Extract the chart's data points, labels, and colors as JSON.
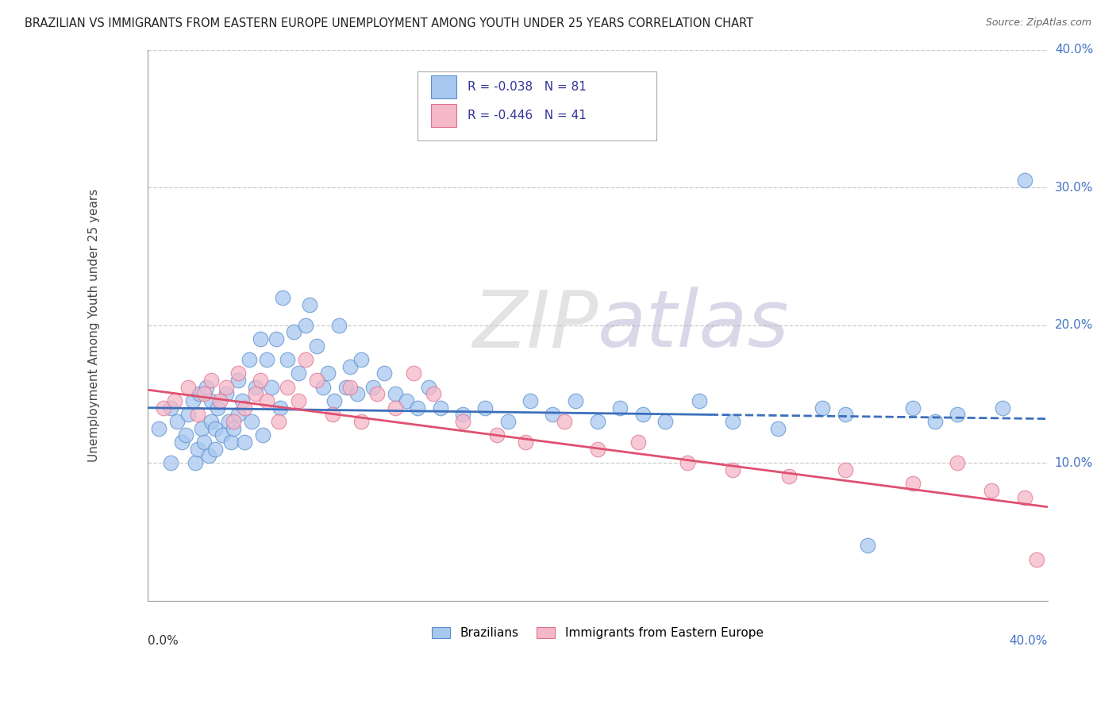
{
  "title": "BRAZILIAN VS IMMIGRANTS FROM EASTERN EUROPE UNEMPLOYMENT AMONG YOUTH UNDER 25 YEARS CORRELATION CHART",
  "source": "Source: ZipAtlas.com",
  "ylabel": "Unemployment Among Youth under 25 years",
  "xlim": [
    0.0,
    0.4
  ],
  "ylim": [
    0.0,
    0.4
  ],
  "blue_fill": "#A8C8F0",
  "blue_edge": "#5B8FCC",
  "pink_fill": "#F5B8C8",
  "pink_edge": "#E07090",
  "blue_line_color": "#3B6FBB",
  "pink_line_color": "#E05070",
  "watermark_color": "#DEDEDE",
  "legend_R_blue": "R = -0.038",
  "legend_N_blue": "N = 81",
  "legend_R_pink": "R = -0.446",
  "legend_N_pink": "N = 41",
  "blue_x": [
    0.005,
    0.01,
    0.01,
    0.013,
    0.015,
    0.017,
    0.018,
    0.02,
    0.021,
    0.022,
    0.023,
    0.024,
    0.025,
    0.026,
    0.027,
    0.028,
    0.028,
    0.03,
    0.03,
    0.031,
    0.033,
    0.035,
    0.036,
    0.037,
    0.038,
    0.04,
    0.04,
    0.042,
    0.043,
    0.045,
    0.046,
    0.048,
    0.05,
    0.051,
    0.053,
    0.055,
    0.057,
    0.059,
    0.06,
    0.062,
    0.065,
    0.067,
    0.07,
    0.072,
    0.075,
    0.078,
    0.08,
    0.083,
    0.085,
    0.088,
    0.09,
    0.093,
    0.095,
    0.1,
    0.105,
    0.11,
    0.115,
    0.12,
    0.125,
    0.13,
    0.14,
    0.15,
    0.16,
    0.17,
    0.18,
    0.19,
    0.2,
    0.21,
    0.22,
    0.23,
    0.245,
    0.26,
    0.28,
    0.3,
    0.31,
    0.32,
    0.34,
    0.35,
    0.36,
    0.38,
    0.39
  ],
  "blue_y": [
    0.125,
    0.14,
    0.1,
    0.13,
    0.115,
    0.12,
    0.135,
    0.145,
    0.1,
    0.11,
    0.15,
    0.125,
    0.115,
    0.155,
    0.105,
    0.13,
    0.145,
    0.11,
    0.125,
    0.14,
    0.12,
    0.15,
    0.13,
    0.115,
    0.125,
    0.16,
    0.135,
    0.145,
    0.115,
    0.175,
    0.13,
    0.155,
    0.19,
    0.12,
    0.175,
    0.155,
    0.19,
    0.14,
    0.22,
    0.175,
    0.195,
    0.165,
    0.2,
    0.215,
    0.185,
    0.155,
    0.165,
    0.145,
    0.2,
    0.155,
    0.17,
    0.15,
    0.175,
    0.155,
    0.165,
    0.15,
    0.145,
    0.14,
    0.155,
    0.14,
    0.135,
    0.14,
    0.13,
    0.145,
    0.135,
    0.145,
    0.13,
    0.14,
    0.135,
    0.13,
    0.145,
    0.13,
    0.125,
    0.14,
    0.135,
    0.04,
    0.14,
    0.13,
    0.135,
    0.14,
    0.305
  ],
  "pink_x": [
    0.007,
    0.012,
    0.018,
    0.022,
    0.025,
    0.028,
    0.032,
    0.035,
    0.038,
    0.04,
    0.043,
    0.048,
    0.05,
    0.053,
    0.058,
    0.062,
    0.067,
    0.07,
    0.075,
    0.082,
    0.09,
    0.095,
    0.102,
    0.11,
    0.118,
    0.127,
    0.14,
    0.155,
    0.168,
    0.185,
    0.2,
    0.218,
    0.24,
    0.26,
    0.285,
    0.31,
    0.34,
    0.36,
    0.375,
    0.39,
    0.395
  ],
  "pink_y": [
    0.14,
    0.145,
    0.155,
    0.135,
    0.15,
    0.16,
    0.145,
    0.155,
    0.13,
    0.165,
    0.14,
    0.15,
    0.16,
    0.145,
    0.13,
    0.155,
    0.145,
    0.175,
    0.16,
    0.135,
    0.155,
    0.13,
    0.15,
    0.14,
    0.165,
    0.15,
    0.13,
    0.12,
    0.115,
    0.13,
    0.11,
    0.115,
    0.1,
    0.095,
    0.09,
    0.095,
    0.085,
    0.1,
    0.08,
    0.075,
    0.03
  ],
  "blue_line_start_y": 0.14,
  "blue_line_end_y": 0.132,
  "pink_line_start_y": 0.153,
  "pink_line_end_y": 0.068
}
